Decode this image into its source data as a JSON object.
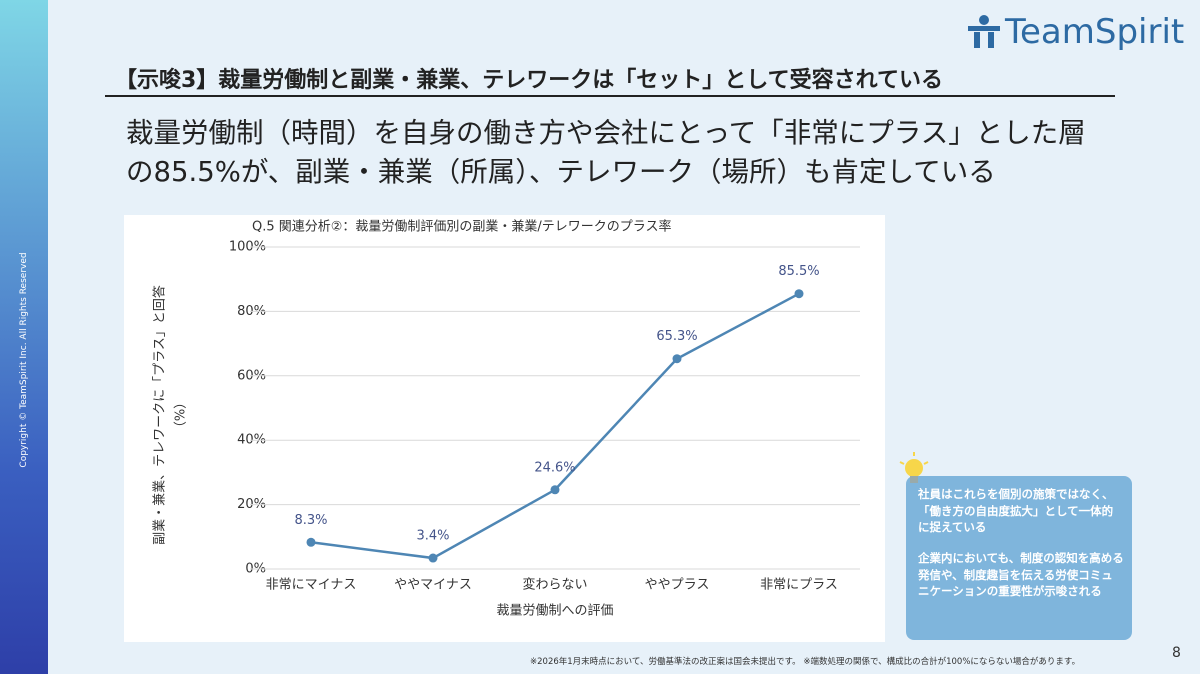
{
  "slide": {
    "logo": "TeamSpirit",
    "copyright": "Copyright © TeamSpirit Inc. All Rights Reserved",
    "heading": "【示唆3】裁量労働制と副業・兼業、テレワークは「セット」として受容されている",
    "lead": [
      "裁量労働制（時間）を自身の働き方や会社にとって「非常にプラス」とした層",
      "の85.5%が、副業・兼業（所属）、テレワーク（場所）も肯定している"
    ],
    "callout": [
      "社員はこれらを個別の施策ではなく、「働き方の自由度拡大」として一体的に捉えている",
      "企業内においても、制度の認知を高める発信や、制度趣旨を伝える労使コミュニケーションの重要性が示唆される"
    ],
    "footnote": "※2026年1月末時点において、労働基準法の改正案は国会未提出です。 ※端数処理の関係で、構成比の合計が100%にならない場合があります。",
    "page": "8"
  },
  "chart_data": {
    "type": "line",
    "title": "Q.5 関連分析②：裁量労働制評価別の副業・兼業/テレワークのプラス率",
    "xlabel": "裁量労働制への評価",
    "ylabel": [
      "副業・兼業、テレワークに「プラス」と回答",
      "（%）"
    ],
    "categories": [
      "非常にマイナス",
      "ややマイナス",
      "変わらない",
      "ややプラス",
      "非常にプラス"
    ],
    "values": [
      8.3,
      3.4,
      24.6,
      65.3,
      85.5
    ],
    "value_labels": [
      "8.3%",
      "3.4%",
      "24.6%",
      "65.3%",
      "85.5%"
    ],
    "color": "#4e86b4",
    "ylim": [
      0,
      100
    ],
    "yticks": [
      {
        "value": 0,
        "label": "0%"
      },
      {
        "value": 20,
        "label": "20%"
      },
      {
        "value": 40,
        "label": "40%"
      },
      {
        "value": 60,
        "label": "60%"
      },
      {
        "value": 80,
        "label": "80%"
      },
      {
        "value": 100,
        "label": "100%"
      }
    ],
    "grid": true
  }
}
